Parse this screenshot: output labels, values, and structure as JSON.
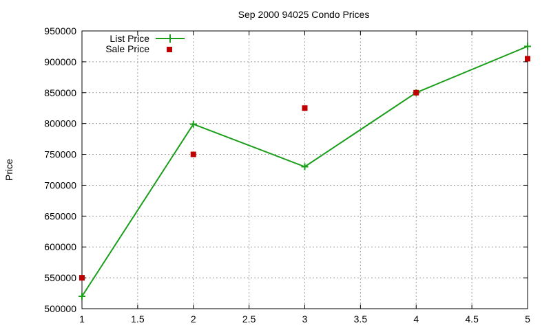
{
  "chart_data": {
    "type": "line",
    "title": "Sep 2000 94025 Condo Prices",
    "xlabel": "",
    "ylabel": "Price",
    "xlim": [
      1,
      5
    ],
    "ylim": [
      500000,
      950000
    ],
    "x_ticks": [
      "1",
      "1.5",
      "2",
      "2.5",
      "3",
      "3.5",
      "4",
      "4.5",
      "5"
    ],
    "y_ticks": [
      "500000",
      "550000",
      "600000",
      "650000",
      "700000",
      "750000",
      "800000",
      "850000",
      "900000",
      "950000"
    ],
    "grid": true,
    "legend_position": "top-left",
    "series": [
      {
        "name": "List Price",
        "style": "line-with-plus-markers",
        "color": "#1a9e1a",
        "x": [
          1,
          2,
          3,
          4,
          5
        ],
        "values": [
          520000,
          799000,
          730000,
          850000,
          925000
        ]
      },
      {
        "name": "Sale Price",
        "style": "square-markers",
        "color": "#c00000",
        "x": [
          1,
          2,
          3,
          4,
          5
        ],
        "values": [
          550000,
          750000,
          825000,
          850000,
          905000
        ]
      }
    ]
  }
}
